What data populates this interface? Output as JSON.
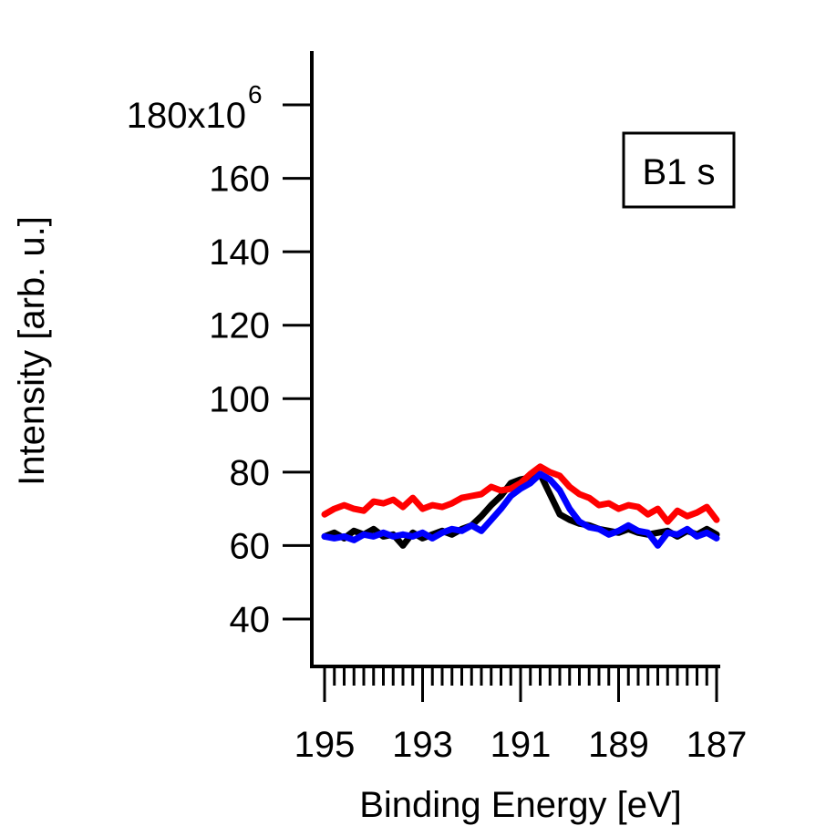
{
  "chart_data": {
    "type": "line",
    "title": "",
    "xlabel": "Binding Energy [eV]",
    "ylabel": "Intensity [arb. u.]",
    "xlim": [
      195.05,
      187.0
    ],
    "ylim": [
      28,
      193
    ],
    "x_reversed": true,
    "x_ticks": [
      195,
      193,
      191,
      189,
      187
    ],
    "x_tick_labels": [
      "195",
      "193",
      "191",
      "189",
      "187"
    ],
    "x_minor_step": 0.2,
    "y_ticks": [
      40,
      60,
      80,
      100,
      120,
      140,
      160,
      180
    ],
    "y_tick_labels": [
      "40",
      "60",
      "80",
      "100",
      "120",
      "140",
      "160",
      "180x10"
    ],
    "y_scale_exponent": "6",
    "legend_label": "B1 s",
    "grid": false,
    "series": [
      {
        "color": "#000000",
        "x": [
          195.0,
          194.8,
          194.6,
          194.4,
          194.2,
          194.0,
          193.8,
          193.6,
          193.4,
          193.2,
          193.0,
          192.8,
          192.6,
          192.4,
          192.2,
          192.0,
          191.8,
          191.6,
          191.4,
          191.2,
          191.0,
          190.8,
          190.6,
          190.4,
          190.2,
          190.0,
          189.8,
          189.6,
          189.4,
          189.2,
          189.0,
          188.8,
          188.6,
          188.4,
          188.2,
          188.0,
          187.8,
          187.6,
          187.4,
          187.2,
          187.0
        ],
        "y": [
          62.5,
          63.5,
          62.0,
          64.0,
          63.0,
          64.5,
          62.5,
          63.0,
          60.0,
          63.5,
          62.0,
          63.0,
          64.0,
          63.0,
          64.5,
          65.5,
          68.0,
          71.0,
          73.5,
          77.0,
          78.0,
          78.5,
          79.5,
          74.0,
          68.5,
          67.0,
          66.0,
          65.5,
          64.5,
          64.0,
          63.5,
          64.5,
          63.5,
          63.0,
          63.5,
          64.0,
          62.5,
          64.0,
          63.0,
          64.5,
          63.0
        ]
      },
      {
        "color": "#ff0000",
        "x": [
          195.0,
          194.8,
          194.6,
          194.4,
          194.2,
          194.0,
          193.8,
          193.6,
          193.4,
          193.2,
          193.0,
          192.8,
          192.6,
          192.4,
          192.2,
          192.0,
          191.8,
          191.6,
          191.4,
          191.2,
          191.0,
          190.8,
          190.6,
          190.4,
          190.2,
          190.0,
          189.8,
          189.6,
          189.4,
          189.2,
          189.0,
          188.8,
          188.6,
          188.4,
          188.2,
          188.0,
          187.8,
          187.6,
          187.4,
          187.2,
          187.0
        ],
        "y": [
          68.5,
          70.0,
          71.0,
          70.0,
          69.5,
          72.0,
          71.5,
          72.5,
          70.5,
          73.0,
          70.0,
          71.0,
          70.5,
          71.5,
          73.0,
          73.5,
          74.0,
          76.0,
          75.0,
          75.5,
          77.0,
          79.5,
          81.5,
          80.0,
          79.0,
          76.0,
          74.0,
          73.0,
          71.0,
          71.5,
          70.0,
          71.0,
          70.5,
          68.5,
          70.0,
          66.5,
          69.5,
          68.0,
          69.0,
          70.5,
          67.0
        ]
      },
      {
        "color": "#0000ff",
        "x": [
          195.0,
          194.8,
          194.6,
          194.4,
          194.2,
          194.0,
          193.8,
          193.6,
          193.4,
          193.2,
          193.0,
          192.8,
          192.6,
          192.4,
          192.2,
          192.0,
          191.8,
          191.6,
          191.4,
          191.2,
          191.0,
          190.8,
          190.6,
          190.4,
          190.2,
          190.0,
          189.8,
          189.6,
          189.4,
          189.2,
          189.0,
          188.8,
          188.6,
          188.4,
          188.2,
          188.0,
          187.8,
          187.6,
          187.4,
          187.2,
          187.0
        ],
        "y": [
          62.5,
          62.0,
          62.5,
          61.5,
          63.0,
          62.5,
          63.5,
          62.5,
          63.0,
          62.5,
          63.5,
          62.0,
          63.5,
          64.5,
          64.0,
          65.5,
          64.0,
          67.0,
          70.0,
          73.5,
          75.5,
          77.0,
          79.5,
          78.0,
          75.0,
          70.0,
          66.5,
          65.0,
          64.5,
          63.0,
          64.0,
          65.5,
          64.0,
          63.5,
          60.0,
          63.5,
          63.0,
          64.5,
          62.5,
          63.5,
          62.0
        ]
      }
    ]
  }
}
